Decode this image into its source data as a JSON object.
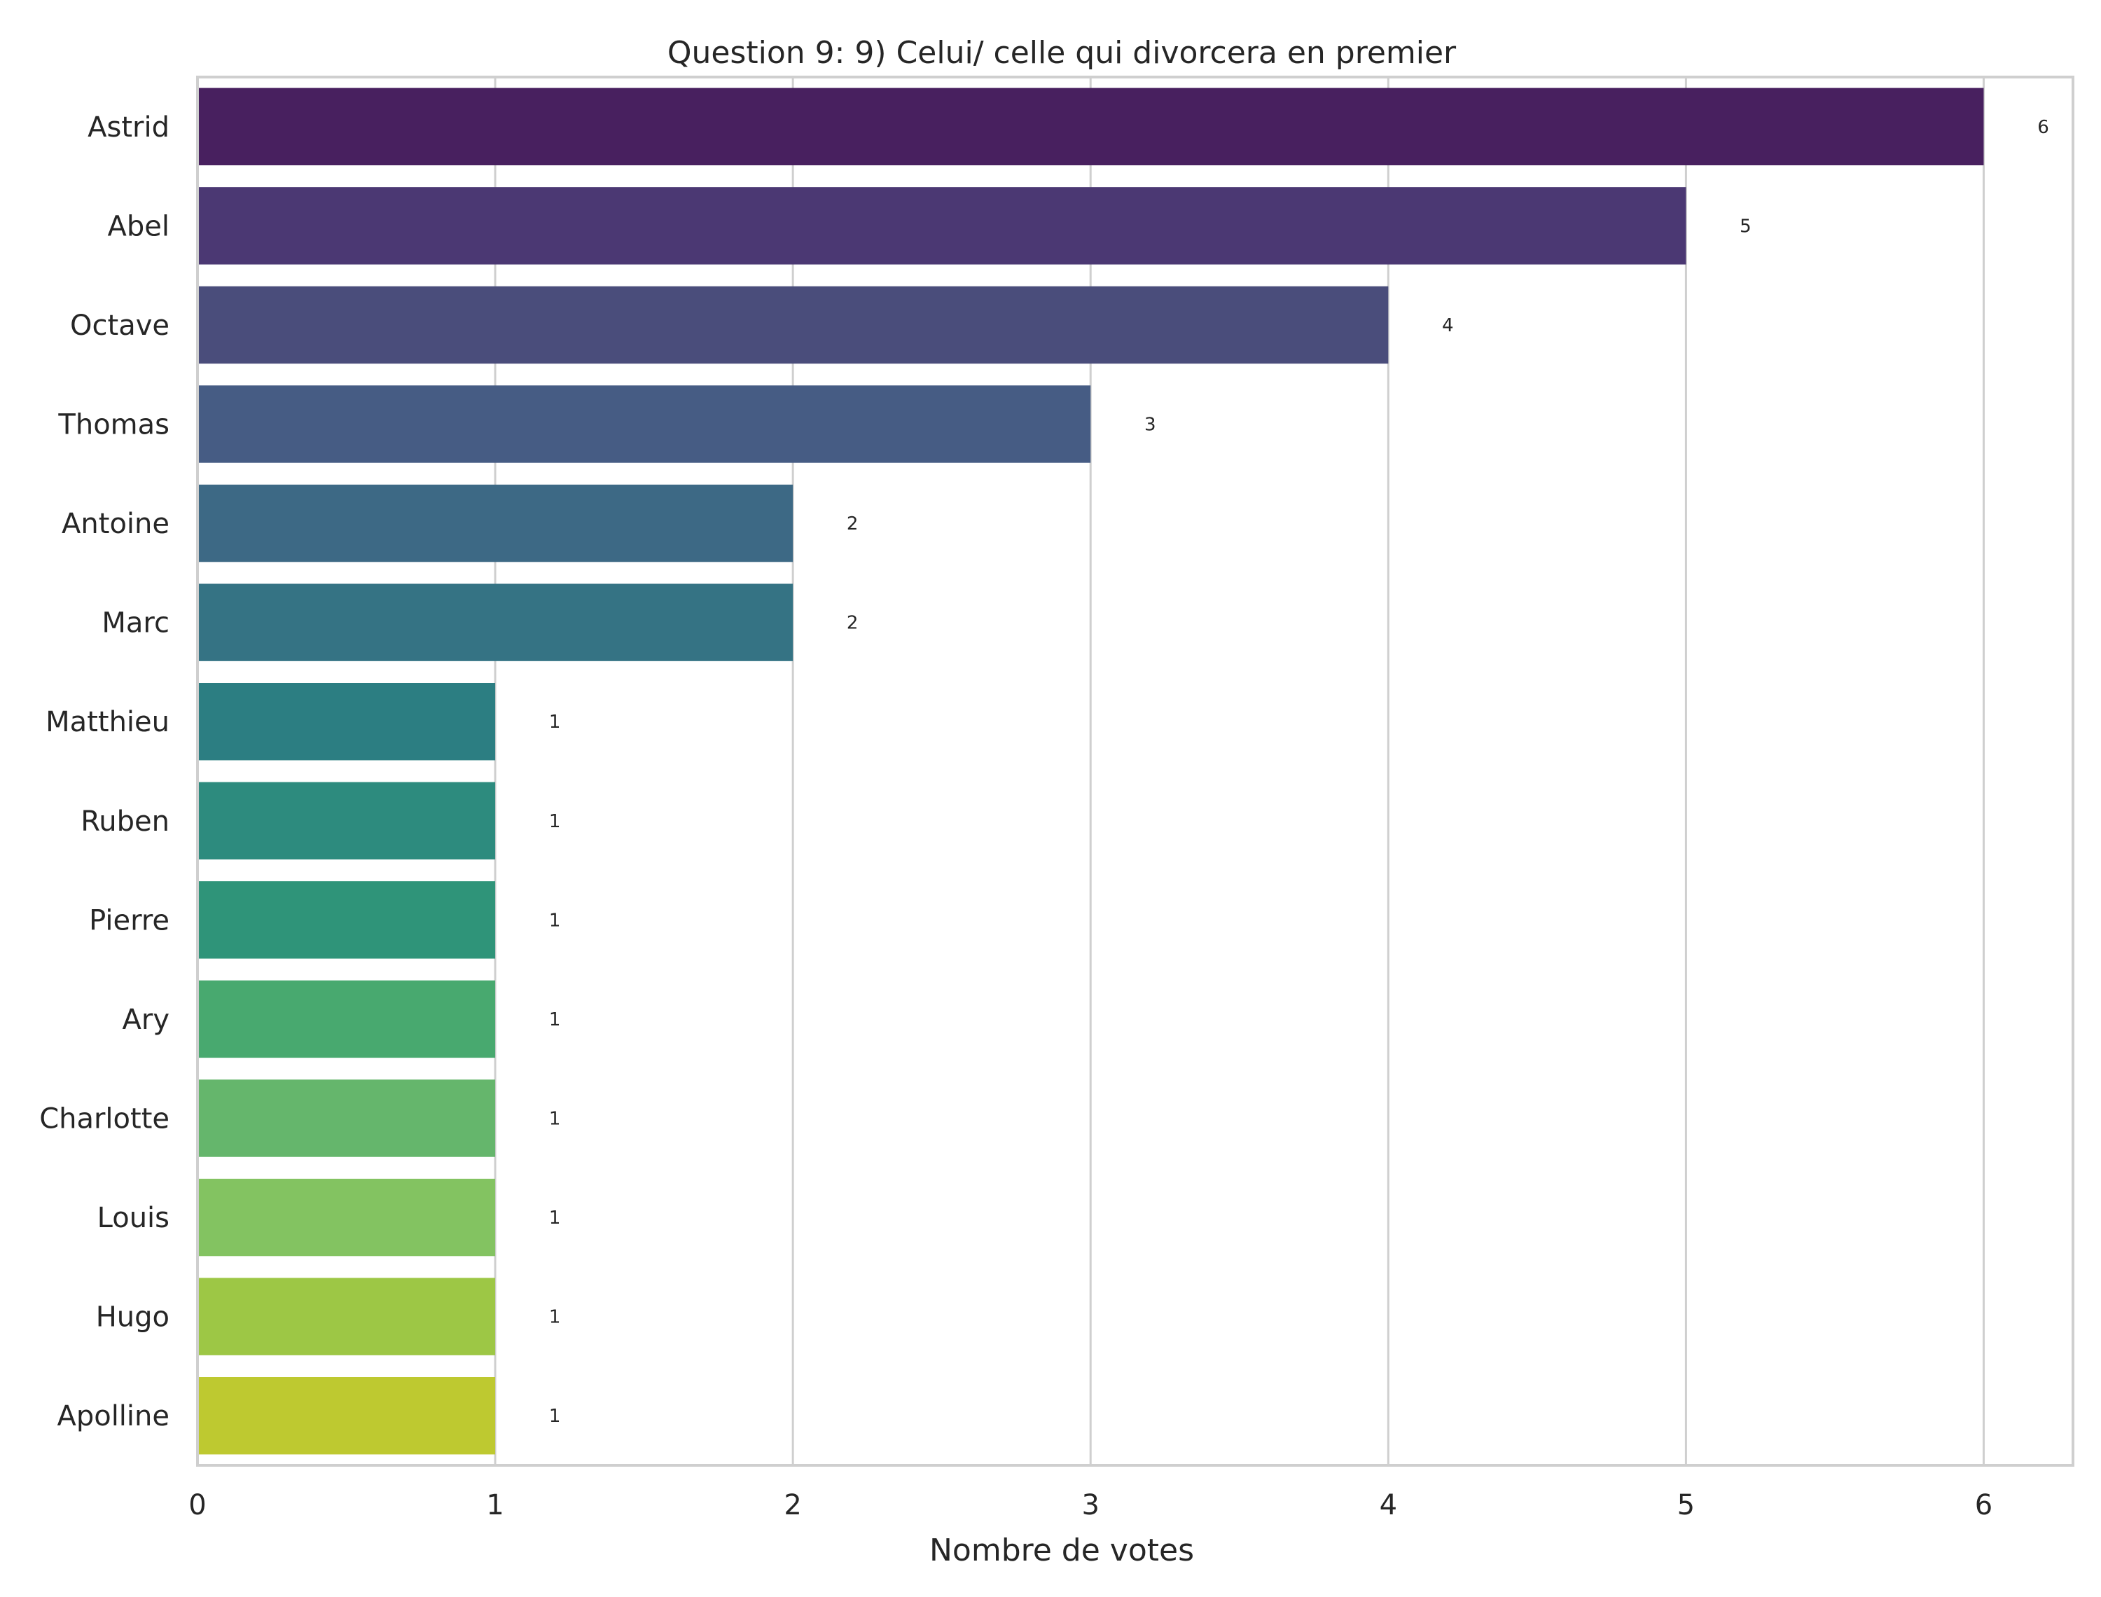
{
  "chart_data": {
    "type": "bar",
    "orientation": "horizontal",
    "title": "Question 9: 9) Celui/ celle qui divorcera en premier",
    "xlabel": "Nombre de votes",
    "ylabel": "",
    "xlim": [
      0,
      6.3
    ],
    "xticks": [
      0,
      1,
      2,
      3,
      4,
      5,
      6
    ],
    "grid": "vertical",
    "categories": [
      "Astrid",
      "Abel",
      "Octave",
      "Thomas",
      "Antoine",
      "Marc",
      "Matthieu",
      "Ruben",
      "Pierre",
      "Ary",
      "Charlotte",
      "Louis",
      "Hugo",
      "Apolline"
    ],
    "values": [
      6,
      5,
      4,
      3,
      2,
      2,
      1,
      1,
      1,
      1,
      1,
      1,
      1,
      1
    ],
    "colors": [
      "#48205f",
      "#4b3873",
      "#4a4d7b",
      "#465c84",
      "#3d6985",
      "#357384",
      "#2c7e82",
      "#2d8b7e",
      "#2f9479",
      "#48a96f",
      "#65b66c",
      "#83c361",
      "#9dc745",
      "#bec930"
    ]
  }
}
